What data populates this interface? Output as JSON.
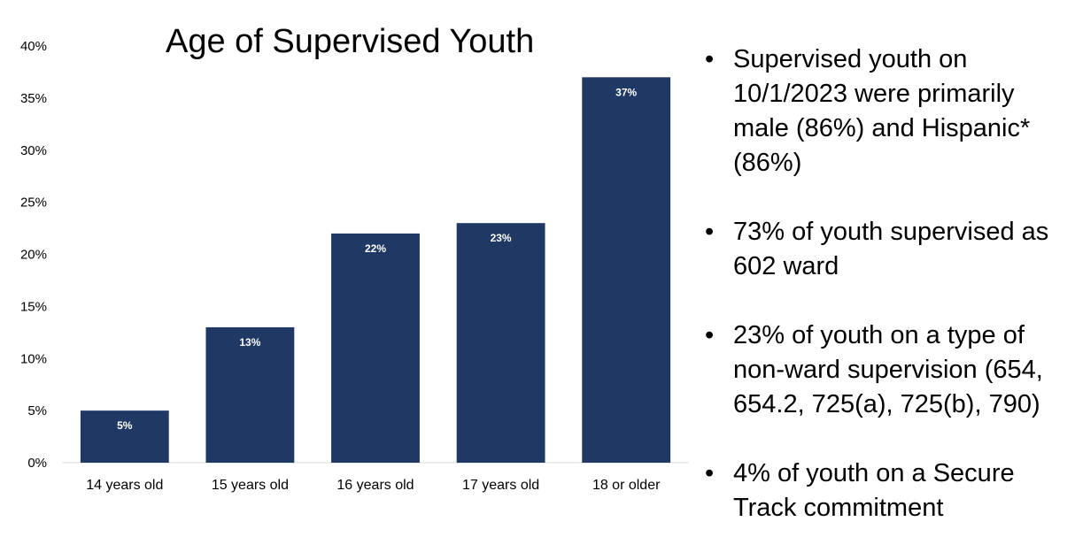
{
  "chart_data": {
    "type": "bar",
    "title": "Age of Supervised Youth",
    "categories": [
      "14 years old",
      "15 years old",
      "16 years old",
      "17 years old",
      "18 or older"
    ],
    "values": [
      5,
      13,
      22,
      23,
      37
    ],
    "data_labels": [
      "5%",
      "13%",
      "22%",
      "23%",
      "37%"
    ],
    "y_ticks": [
      "0%",
      "5%",
      "10%",
      "15%",
      "20%",
      "25%",
      "30%",
      "35%",
      "40%"
    ],
    "ylim": [
      0,
      40
    ],
    "xlabel": "",
    "ylabel": "",
    "grid": false,
    "legend": "none",
    "bar_color": "#203864"
  },
  "bullets": [
    "Supervised youth on 10/1/2023 were primarily male (86%) and Hispanic* (86%)",
    "73% of youth supervised as 602 ward",
    "23% of youth on a type of non-ward supervision (654, 654.2, 725(a), 725(b), 790)",
    "4% of youth on a Secure Track commitment"
  ]
}
